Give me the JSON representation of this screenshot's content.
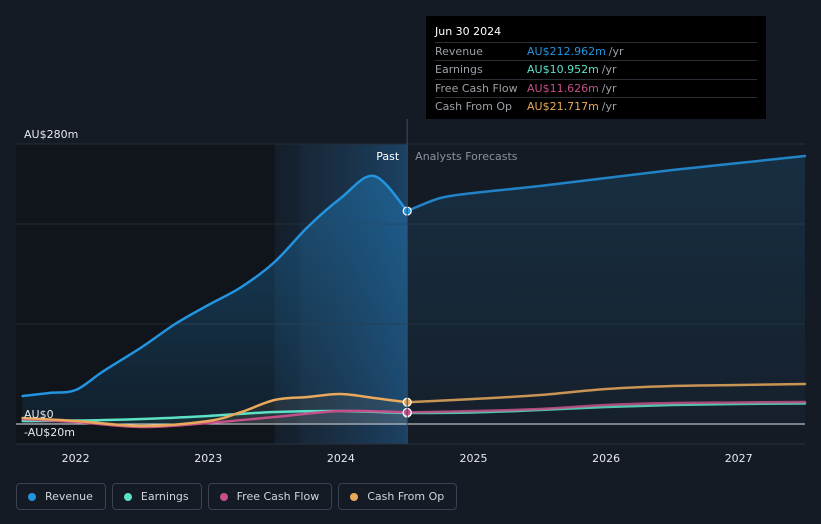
{
  "chart_data": {
    "type": "line",
    "title": "",
    "ylabel": "",
    "y_ticks": [
      {
        "label": "AU$280m",
        "value": 280
      },
      {
        "label": "AU$0",
        "value": 0
      },
      {
        "label": "-AU$20m",
        "value": -20
      }
    ],
    "ylim": [
      -20,
      280
    ],
    "xlim": [
      2021.55,
      2027.5
    ],
    "x_ticks": [
      {
        "label": "2022",
        "value": 2022
      },
      {
        "label": "2023",
        "value": 2023
      },
      {
        "label": "2024",
        "value": 2024
      },
      {
        "label": "2025",
        "value": 2025
      },
      {
        "label": "2026",
        "value": 2026
      },
      {
        "label": "2027",
        "value": 2027
      }
    ],
    "past_start": 2023.5,
    "divider_x": 2024.5,
    "past_label": "Past",
    "forecast_label": "Analysts Forecasts",
    "series": [
      {
        "name": "Revenue",
        "color": "#2394df",
        "points": [
          [
            2021.6,
            28
          ],
          [
            2021.8,
            31
          ],
          [
            2022.0,
            34
          ],
          [
            2022.2,
            52
          ],
          [
            2022.5,
            77
          ],
          [
            2022.75,
            100
          ],
          [
            2023.0,
            119
          ],
          [
            2023.25,
            137
          ],
          [
            2023.5,
            162
          ],
          [
            2023.75,
            197
          ],
          [
            2024.0,
            226
          ],
          [
            2024.25,
            248
          ],
          [
            2024.5,
            212.962
          ]
        ],
        "forecast_points": [
          [
            2024.5,
            212.962
          ],
          [
            2024.75,
            226
          ],
          [
            2025.0,
            231
          ],
          [
            2025.5,
            238
          ],
          [
            2026.0,
            246
          ],
          [
            2026.5,
            254
          ],
          [
            2027.0,
            261
          ],
          [
            2027.5,
            268
          ]
        ],
        "marker": [
          2024.5,
          212.962
        ]
      },
      {
        "name": "Earnings",
        "color": "#5ce0c6",
        "points": [
          [
            2021.6,
            3
          ],
          [
            2022.0,
            3.5
          ],
          [
            2022.5,
            5
          ],
          [
            2023.0,
            8
          ],
          [
            2023.5,
            12
          ],
          [
            2024.0,
            13
          ],
          [
            2024.5,
            10.952
          ]
        ],
        "forecast_points": [
          [
            2024.5,
            10.952
          ],
          [
            2025.0,
            11.5
          ],
          [
            2025.5,
            14
          ],
          [
            2026.0,
            17
          ],
          [
            2026.5,
            19
          ],
          [
            2027.0,
            20
          ],
          [
            2027.5,
            20.5
          ]
        ],
        "marker": [
          2024.5,
          10.952
        ]
      },
      {
        "name": "Free Cash Flow",
        "color": "#c44f89",
        "points": [
          [
            2021.6,
            5
          ],
          [
            2022.0,
            2
          ],
          [
            2022.5,
            -3
          ],
          [
            2023.0,
            1
          ],
          [
            2023.5,
            7
          ],
          [
            2024.0,
            13
          ],
          [
            2024.5,
            11.626
          ]
        ],
        "forecast_points": [
          [
            2024.5,
            11.626
          ],
          [
            2025.0,
            13
          ],
          [
            2025.5,
            15
          ],
          [
            2026.0,
            19
          ],
          [
            2026.5,
            21
          ],
          [
            2027.0,
            21.5
          ],
          [
            2027.5,
            22
          ]
        ],
        "marker": [
          2024.5,
          11.626
        ]
      },
      {
        "name": "Cash From Op",
        "color": "#e8a95b",
        "points": [
          [
            2021.6,
            6
          ],
          [
            2022.0,
            3
          ],
          [
            2022.5,
            -2
          ],
          [
            2023.0,
            3
          ],
          [
            2023.25,
            12
          ],
          [
            2023.5,
            24
          ],
          [
            2023.75,
            27
          ],
          [
            2024.0,
            30
          ],
          [
            2024.25,
            26
          ],
          [
            2024.5,
            21.717
          ]
        ],
        "forecast_points": [
          [
            2024.5,
            21.717
          ],
          [
            2025.0,
            25
          ],
          [
            2025.5,
            29
          ],
          [
            2026.0,
            35
          ],
          [
            2026.5,
            38
          ],
          [
            2027.0,
            39
          ],
          [
            2027.5,
            40
          ]
        ],
        "marker": [
          2024.5,
          21.717
        ]
      }
    ]
  },
  "tooltip": {
    "date": "Jun 30 2024",
    "rows": [
      {
        "label": "Revenue",
        "value": "AU$212.962m",
        "unit": "/yr",
        "color": "#2394df"
      },
      {
        "label": "Earnings",
        "value": "AU$10.952m",
        "unit": "/yr",
        "color": "#5ce0c6"
      },
      {
        "label": "Free Cash Flow",
        "value": "AU$11.626m",
        "unit": "/yr",
        "color": "#c44f89"
      },
      {
        "label": "Cash From Op",
        "value": "AU$21.717m",
        "unit": "/yr",
        "color": "#e8a95b"
      }
    ]
  },
  "legend": [
    {
      "label": "Revenue",
      "color": "#2394df"
    },
    {
      "label": "Earnings",
      "color": "#5ce0c6"
    },
    {
      "label": "Free Cash Flow",
      "color": "#c44f89"
    },
    {
      "label": "Cash From Op",
      "color": "#e8a95b"
    }
  ]
}
